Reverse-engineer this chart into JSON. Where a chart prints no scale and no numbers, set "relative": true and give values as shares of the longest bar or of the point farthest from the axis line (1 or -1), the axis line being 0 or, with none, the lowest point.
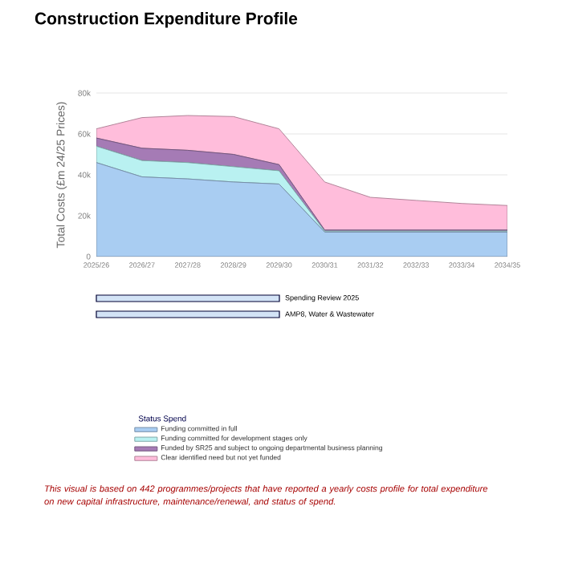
{
  "chart_data": [
    {
      "type": "area",
      "title": "Construction Expenditure Profile",
      "ylabel": "Total Costs (£m 24/25 Prices)",
      "stacked": true,
      "categories": [
        "2025/26",
        "2026/27",
        "2027/28",
        "2028/29",
        "2029/30",
        "2030/31",
        "2031/32",
        "2032/33",
        "2033/34",
        "2034/35"
      ],
      "series": [
        {
          "name": "Funding committed in full",
          "color": "#a9cdf2",
          "values": [
            46000,
            39000,
            38000,
            36500,
            35500,
            12000,
            12000,
            12000,
            12000,
            12000
          ]
        },
        {
          "name": "Funding committed for development stages only",
          "color": "#b9f1f1",
          "values": [
            8000,
            8000,
            8000,
            7500,
            6500,
            500,
            500,
            500,
            500,
            500
          ]
        },
        {
          "name": "Funded by SR25 and subject to ongoing departmental business planning",
          "color": "#a57bb5",
          "values": [
            4000,
            6000,
            6000,
            6000,
            3000,
            500,
            500,
            500,
            500,
            500
          ]
        },
        {
          "name": "Clear identified need but not yet funded",
          "color": "#ffbddb",
          "values": [
            4500,
            15000,
            17000,
            18500,
            17500,
            23500,
            16000,
            14500,
            13000,
            12000
          ]
        }
      ],
      "ylim": [
        0,
        80000
      ],
      "yticks": [
        0,
        {
          "value": 20000,
          "label": "20k"
        },
        {
          "value": 40000,
          "label": "40k"
        },
        {
          "value": 60000,
          "label": "60k"
        },
        {
          "value": 80000,
          "label": "80k"
        }
      ],
      "grid": "y",
      "legend": "bottom",
      "legend_title": "Status Spend",
      "annotations": [
        "This visual is based on 442 programmes/projects that have reported a yearly costs profile for total expenditure on new capital infrastructure, maintenance/renewal, and status of spend."
      ]
    },
    {
      "type": "bar",
      "orientation": "horizontal",
      "categories": [
        "Spending Review 2025",
        "AMP8, Water & Wastewater"
      ],
      "values": [
        1,
        1
      ],
      "relative": true,
      "color": "#d3e3f6"
    }
  ]
}
